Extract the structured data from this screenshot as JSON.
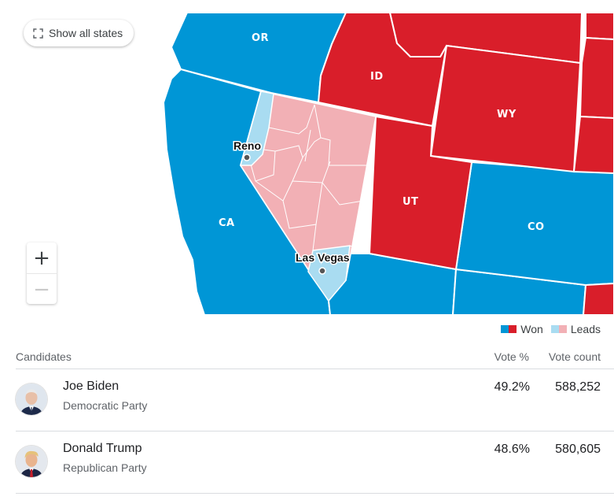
{
  "map": {
    "show_all_label": "Show all states",
    "states": {
      "or": "OR",
      "id": "ID",
      "wy": "WY",
      "ca": "CA",
      "ut": "UT",
      "co": "CO"
    },
    "cities": {
      "reno": "Reno",
      "las_vegas": "Las Vegas"
    },
    "zoom_in": "+",
    "zoom_out": "−",
    "colors": {
      "dem_won": "#0096d6",
      "rep_won": "#d91e2a",
      "dem_leads": "#a9dcf1",
      "rep_leads": "#f2b0b5"
    }
  },
  "legend": {
    "won": "Won",
    "leads": "Leads"
  },
  "table": {
    "headers": {
      "candidates": "Candidates",
      "vote_pct": "Vote %",
      "vote_count": "Vote count"
    },
    "rows": [
      {
        "name": "Joe Biden",
        "party": "Democratic Party",
        "pct": "49.2%",
        "count": "588,252"
      },
      {
        "name": "Donald Trump",
        "party": "Republican Party",
        "pct": "48.6%",
        "count": "580,605"
      }
    ]
  }
}
